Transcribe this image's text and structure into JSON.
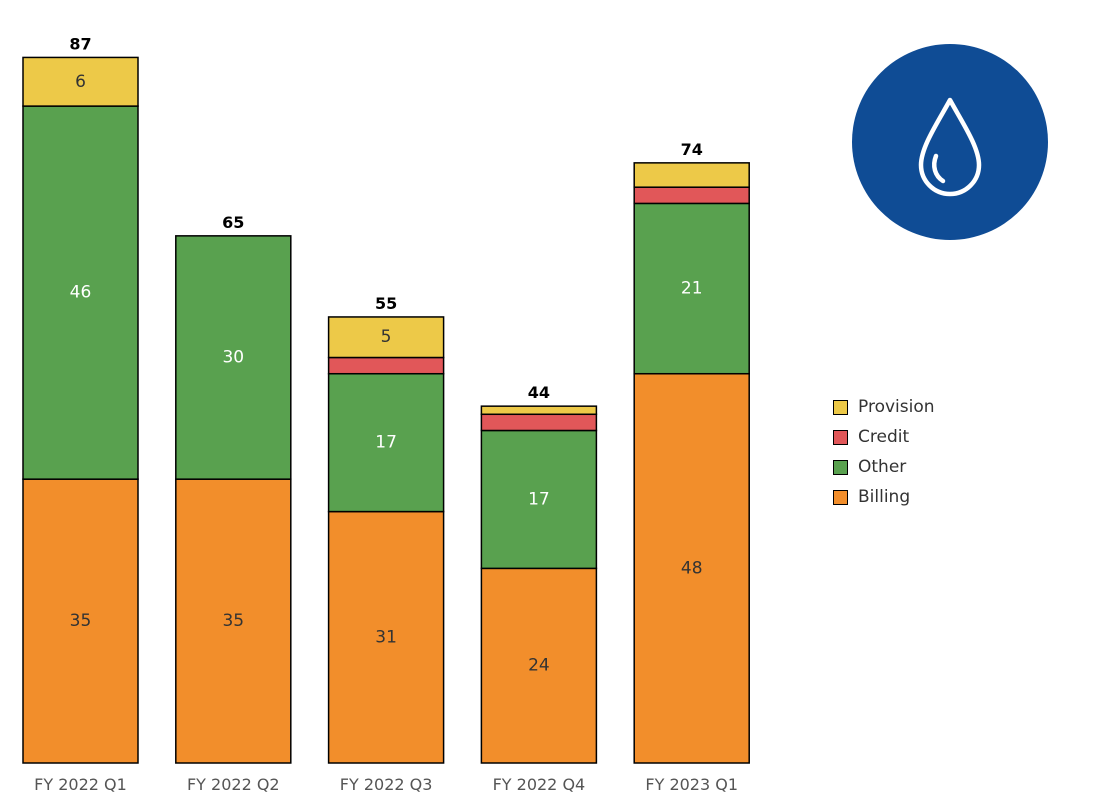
{
  "chart_data": {
    "type": "bar",
    "stacked": true,
    "categories": [
      "FY 2022 Q1",
      "FY 2022 Q2",
      "FY 2022 Q3",
      "FY 2022 Q4",
      "FY 2023 Q1"
    ],
    "series": [
      {
        "name": "Billing",
        "color": "#f28e2b",
        "values": [
          35,
          35,
          31,
          24,
          48
        ],
        "label_color": "#333333"
      },
      {
        "name": "Other",
        "color": "#59a14f",
        "values": [
          46,
          30,
          17,
          17,
          21
        ],
        "label_color": "#ffffff"
      },
      {
        "name": "Credit",
        "color": "#e15759",
        "values": [
          0,
          0,
          2,
          2,
          2
        ],
        "label_color": "#333333"
      },
      {
        "name": "Provision",
        "color": "#edc948",
        "values": [
          6,
          0,
          5,
          1,
          3
        ],
        "label_color": "#333333"
      }
    ],
    "segment_labels_shown": [
      [
        true,
        true,
        false,
        true
      ],
      [
        true,
        true,
        false,
        false
      ],
      [
        true,
        true,
        false,
        true
      ],
      [
        true,
        true,
        false,
        false
      ],
      [
        true,
        true,
        false,
        false
      ]
    ],
    "totals": [
      87,
      65,
      55,
      44,
      74
    ],
    "ylim": [
      0,
      87
    ],
    "grid": false,
    "legend": {
      "placement": "right",
      "order": [
        "Provision",
        "Credit",
        "Other",
        "Billing"
      ]
    }
  },
  "badge": {
    "icon": "water-drop-icon",
    "color": "#0f4c95"
  }
}
